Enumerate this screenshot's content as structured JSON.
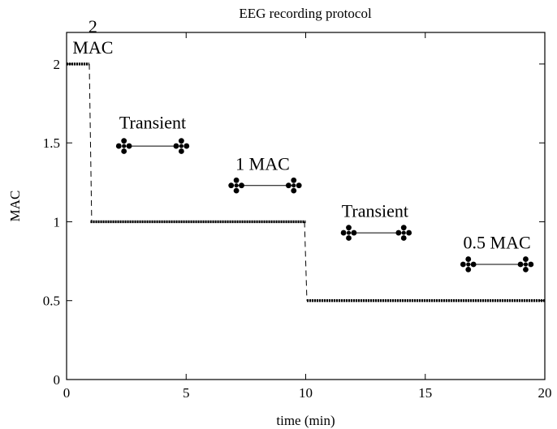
{
  "chart_data": {
    "type": "line",
    "title": "EEG recording protocol",
    "xlabel": "time (min)",
    "ylabel": "MAC",
    "xlim": [
      0,
      20
    ],
    "ylim": [
      0,
      2.2
    ],
    "xticks": [
      0,
      5,
      10,
      15,
      20
    ],
    "yticks": [
      0,
      0.5,
      1,
      1.5,
      2
    ],
    "xtick_labels": [
      "0",
      "5",
      "10",
      "15",
      "20"
    ],
    "ytick_labels": [
      "0",
      "0.5",
      "1",
      "1.5",
      "2"
    ],
    "grid": false,
    "series": [
      {
        "style": "dotted-thick",
        "segments": [
          {
            "x": [
              0,
              0.95
            ],
            "y": [
              2,
              2
            ]
          },
          {
            "x": [
              1,
              10
            ],
            "y": [
              1,
              1
            ]
          },
          {
            "x": [
              10.05,
              20
            ],
            "y": [
              0.5,
              0.5
            ]
          }
        ]
      },
      {
        "style": "dashed",
        "segments": [
          {
            "x": [
              0.95,
              1.05
            ],
            "y": [
              2,
              1
            ]
          },
          {
            "x": [
              9.95,
              10.05
            ],
            "y": [
              1,
              0.5
            ]
          }
        ]
      }
    ],
    "annotations": [
      {
        "lines": [
          "2",
          "MAC"
        ],
        "x": 1.1,
        "y": 2.2
      },
      {
        "lines": [
          "Transient"
        ],
        "x": 3.6,
        "y": 1.59
      },
      {
        "lines": [
          "1 MAC"
        ],
        "x": 8.2,
        "y": 1.33
      },
      {
        "lines": [
          "Transient"
        ],
        "x": 12.9,
        "y": 1.03
      },
      {
        "lines": [
          "0.5 MAC"
        ],
        "x": 18.0,
        "y": 0.83
      }
    ],
    "intervals": [
      {
        "x_start": 2.4,
        "x_end": 4.8,
        "y": 1.48
      },
      {
        "x_start": 7.1,
        "x_end": 9.5,
        "y": 1.23
      },
      {
        "x_start": 11.8,
        "x_end": 14.1,
        "y": 0.93
      },
      {
        "x_start": 16.8,
        "x_end": 19.2,
        "y": 0.73
      }
    ]
  }
}
